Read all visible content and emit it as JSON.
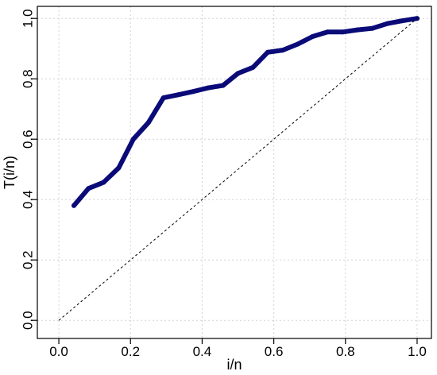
{
  "chart_data": {
    "type": "line",
    "xlabel": "i/n",
    "ylabel": "T(i/n)",
    "xlim": [
      -0.06,
      1.04
    ],
    "ylim": [
      -0.06,
      1.04
    ],
    "xticks": [
      0.0,
      0.2,
      0.4,
      0.6,
      0.8,
      1.0
    ],
    "yticks": [
      0.0,
      0.2,
      0.4,
      0.6,
      0.8,
      1.0
    ],
    "xtick_labels": [
      "0.0",
      "0.2",
      "0.4",
      "0.6",
      "0.8",
      "1.0"
    ],
    "ytick_labels": [
      "0.0",
      "0.2",
      "0.4",
      "0.6",
      "0.8",
      "1.0"
    ],
    "grid": true,
    "series": [
      {
        "style": "solid",
        "color": "#0a0a78",
        "x": [
          0.042,
          0.083,
          0.125,
          0.167,
          0.208,
          0.25,
          0.292,
          0.333,
          0.375,
          0.417,
          0.458,
          0.5,
          0.542,
          0.583,
          0.625,
          0.667,
          0.708,
          0.75,
          0.792,
          0.833,
          0.875,
          0.917,
          0.958,
          1.0
        ],
        "y": [
          0.38,
          0.437,
          0.457,
          0.505,
          0.6,
          0.655,
          0.737,
          0.747,
          0.758,
          0.77,
          0.778,
          0.818,
          0.838,
          0.888,
          0.895,
          0.915,
          0.94,
          0.955,
          0.955,
          0.962,
          0.967,
          0.983,
          0.992,
          1.0
        ]
      },
      {
        "style": "dashed",
        "color": "#000000",
        "x": [
          0.0,
          1.0
        ],
        "y": [
          0.0,
          1.0
        ]
      }
    ]
  }
}
